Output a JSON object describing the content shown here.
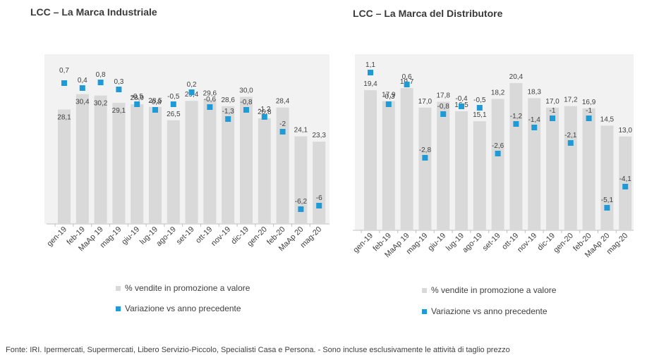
{
  "footnote": "Fonte: IRI. Ipermercati, Supermercati, Libero Servizio-Piccolo, Specialisti Casa e Persona. - Sono incluse esclusivamente le attività di taglio prezzo",
  "colors": {
    "bar": "#d9d9d9",
    "marker": "#1e9bd7",
    "panel": "#f2f2f2"
  },
  "chart_data": [
    {
      "type": "bar",
      "title": "LCC – La Marca Industriale",
      "categories": [
        "gen-19",
        "feb-19",
        "MaAp 19",
        "mag-19",
        "giu-19",
        "lug-19",
        "ago-19",
        "set-19",
        "ott-19",
        "nov-19",
        "dic-19",
        "gen-20",
        "feb-20",
        "MaAp 20",
        "mag-20"
      ],
      "series": [
        {
          "name": "% vendite in promozione a valore",
          "kind": "bar",
          "values": [
            28.1,
            30.4,
            30.2,
            29.1,
            28.9,
            28.5,
            26.5,
            29.4,
            29.6,
            28.6,
            30.0,
            26.8,
            28.4,
            24.1,
            23.3
          ],
          "labels": [
            "28,1",
            "30,4",
            "30,2",
            "29,1",
            "28,9",
            "28,5",
            "26,5",
            "29,4",
            "29,6",
            "28,6",
            "30,0",
            "26,8",
            "28,4",
            "24,1",
            "23,3"
          ]
        },
        {
          "name": "Variazione vs anno precedente",
          "kind": "marker",
          "values": [
            0.7,
            0.4,
            0.8,
            0.3,
            -0.5,
            -0.8,
            -0.5,
            0.2,
            -0.6,
            -1.3,
            -0.8,
            -1.2,
            -2,
            -6.2,
            -6
          ],
          "labels": [
            "0,7",
            "0,4",
            "0,8",
            "0,3",
            "-0,5",
            "-0,8",
            "-0,5",
            "0,2",
            "-0,6",
            "-1,3",
            "-0,8",
            "-1,2",
            "-2",
            "-6,2",
            "-6"
          ]
        }
      ],
      "legend_position": "bottom"
    },
    {
      "type": "bar",
      "title": "LCC – La Marca del Distributore",
      "categories": [
        "gen-19",
        "feb-19",
        "MaAp 19",
        "mag-19",
        "giu-19",
        "lug-19",
        "ago-19",
        "set-19",
        "ott-19",
        "nov-19",
        "dic-19",
        "gen-20",
        "feb-20",
        "MaAp 20",
        "mag-20"
      ],
      "series": [
        {
          "name": "% vendite in promozione a valore",
          "kind": "bar",
          "values": [
            19.4,
            17.9,
            19.7,
            17.0,
            17.8,
            16.5,
            15.1,
            18.2,
            20.4,
            18.3,
            17.0,
            17.2,
            16.9,
            14.5,
            13.0
          ],
          "labels": [
            "19,4",
            "17,9",
            "19,7",
            "17,0",
            "17,8",
            "16,5",
            "15,1",
            "18,2",
            "20,4",
            "18,3",
            "17,0",
            "17,2",
            "16,9",
            "14,5",
            "13,0"
          ]
        },
        {
          "name": "Variazione vs anno precedente",
          "kind": "marker",
          "values": [
            1.1,
            -0.3,
            0.6,
            -2.8,
            -0.8,
            -0.4,
            -0.5,
            -2.6,
            -1.2,
            -1.4,
            -1,
            -2.1,
            -1,
            -5.1,
            -4.1
          ],
          "labels": [
            "1,1",
            "-0,3",
            "0,6",
            "-2,8",
            "-0,8",
            "-0,4",
            "-0,5",
            "-2,6",
            "-1,2",
            "-1,4",
            "-1",
            "-2,1",
            "-1",
            "-5,1",
            "-4,1"
          ]
        }
      ],
      "legend_position": "bottom"
    }
  ]
}
